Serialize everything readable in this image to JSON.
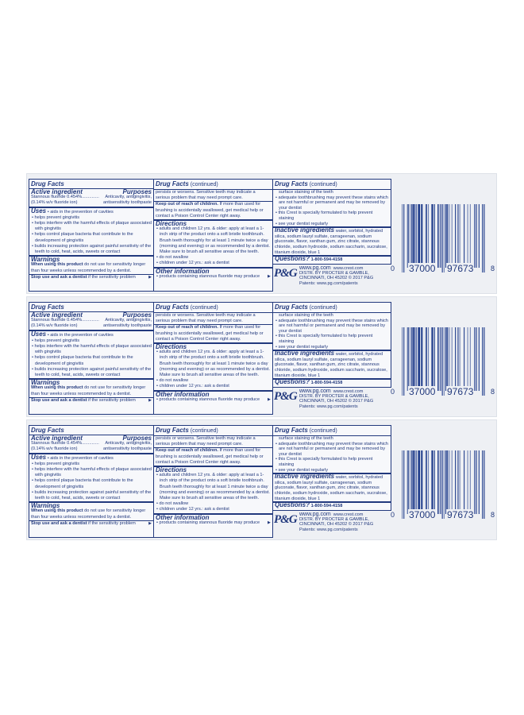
{
  "panel_count_shown": 3,
  "colors": {
    "ink": "#22397d",
    "background": "#eef0f4"
  },
  "panel": {
    "col1": {
      "title": "Drug Facts",
      "active_heading": "Active ingredient",
      "purposes_heading": "Purposes",
      "active_line1_left": "Stannous fluoride 0.454%..............",
      "active_line1_right": "Anticavity, antigingivitis,",
      "active_line2_left": "(0.14% w/v fluoride ion)",
      "active_line2_right": "antisensitivity toothpaste",
      "uses_heading": "Uses",
      "uses_first": "• aids in the prevention of cavities",
      "uses": [
        "helps prevent gingivitis",
        "helps interfere with the harmful effects of plaque associated with gingivitis",
        "helps control plaque bacteria that contribute to the development of gingivitis",
        "builds increasing protection against painful sensitivity of the teeth to cold, heat, acids, sweets or contact"
      ],
      "warnings_heading": "Warnings",
      "warnings_bold": "When using this product",
      "warnings_text": " do not use for sensitivity longer than four weeks unless recommended by a dentist.",
      "stop_use_bold": "Stop use and ask a dentist",
      "stop_use_text": " if the sensitivity problem",
      "continue_arrow": "▶"
    },
    "col2": {
      "title": "Drug Facts",
      "title_suffix": " (continued)",
      "intro": "persists or worsens. Sensitive teeth may indicate a serious problem that may need prompt care.",
      "keep_bold": "Keep out of reach of children.",
      "keep_text": " If more than used for brushing is accidentally swallowed, get medical help or contact a Poison Control Center right away.",
      "directions_heading": "Directions",
      "directions": [
        "adults and children 12 yrs. & older: apply at least a 1-inch strip of the product onto a soft bristle toothbrush. Brush teeth thoroughly for at least 1 minute twice a day (morning and evening) or as recommended by a dentist. Make sure to brush all sensitive areas of the teeth.",
        "do not swallow",
        "children under 12 yrs.: ask a dentist"
      ],
      "other_heading": "Other information",
      "other": "products containing stannous fluoride may produce",
      "continue_arrow": "▶"
    },
    "col3": {
      "title": "Drug Facts",
      "title_suffix": " (continued)",
      "staining_cont": "surface staining of the teeth",
      "bullets": [
        "adequate toothbrushing may prevent these stains which are not harmful or permanent and may be removed by your dentist",
        "this Crest is specially formulated to help prevent staining",
        "see your dentist regularly"
      ],
      "inactive_heading": "Inactive ingredients",
      "inactive_text": " water, sorbitol, hydrated silica, sodium lauryl sulfate, carrageenan, sodium gluconate, flavor, xanthan gum, zinc citrate, stannous chloride, sodium hydroxide, sodium saccharin, sucralose, titanium dioxide, blue 1",
      "questions_heading": "Questions?",
      "questions_phone": " 1-800-594-4158"
    },
    "pg": {
      "logo": "P&G",
      "web": "www.pg.com",
      "web2": "www.crest.com",
      "distr": "DISTR. BY PROCTER & GAMBLE,",
      "address": "CINCINNATI, OH 45202  © 2017 P&G",
      "patents": "Patents: www.pg.com/patents"
    },
    "barcode": {
      "digits": "037000976738",
      "left_digit": "0",
      "left_group": "37000",
      "right_group": "97673",
      "check_digit": "8"
    }
  }
}
